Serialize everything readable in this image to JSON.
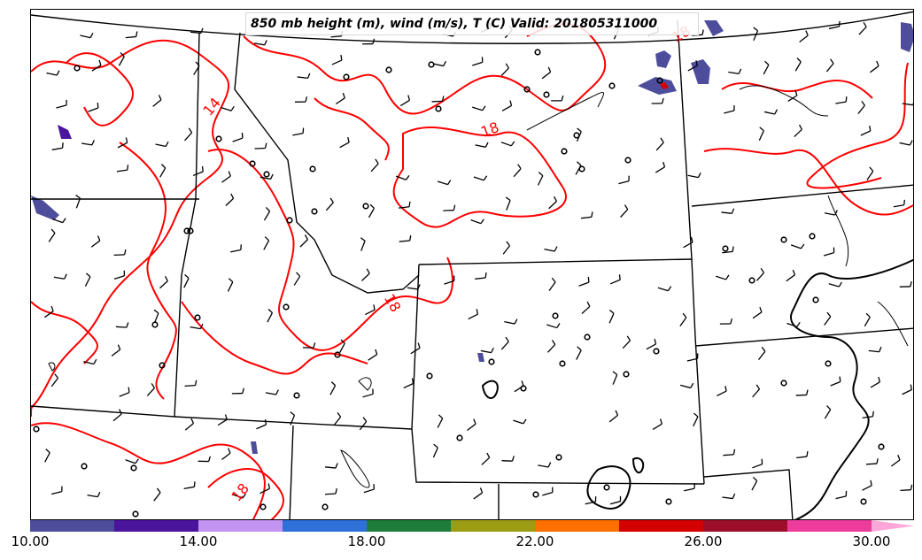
{
  "title": "850 mb height (m), wind (m/s), T (C) Valid: 201805311000",
  "contour_labels": [
    {
      "text": "14"
    },
    {
      "text": "18"
    },
    {
      "text": "18"
    },
    {
      "text": "18"
    },
    {
      "text": "18"
    }
  ],
  "colorbar": {
    "colors": [
      "#4d4d9c",
      "#4b149c",
      "#c393f2",
      "#2f6fd8",
      "#1f7d3c",
      "#9c9c12",
      "#ff7000",
      "#d40000",
      "#9c0e2a",
      "#ee3c9c",
      "#ffa6d8"
    ],
    "tick_labels": [
      "10.00",
      "14.00",
      "18.00",
      "22.00",
      "26.00",
      "30.00"
    ]
  },
  "colors": {
    "temperature_contour": "#ff0000",
    "height_contour": "#000000",
    "boundaries": "#000000",
    "water": "#000000"
  },
  "icons": {
    "wind_barb": "wind-barb-icon",
    "calm": "calm-circle-icon"
  }
}
